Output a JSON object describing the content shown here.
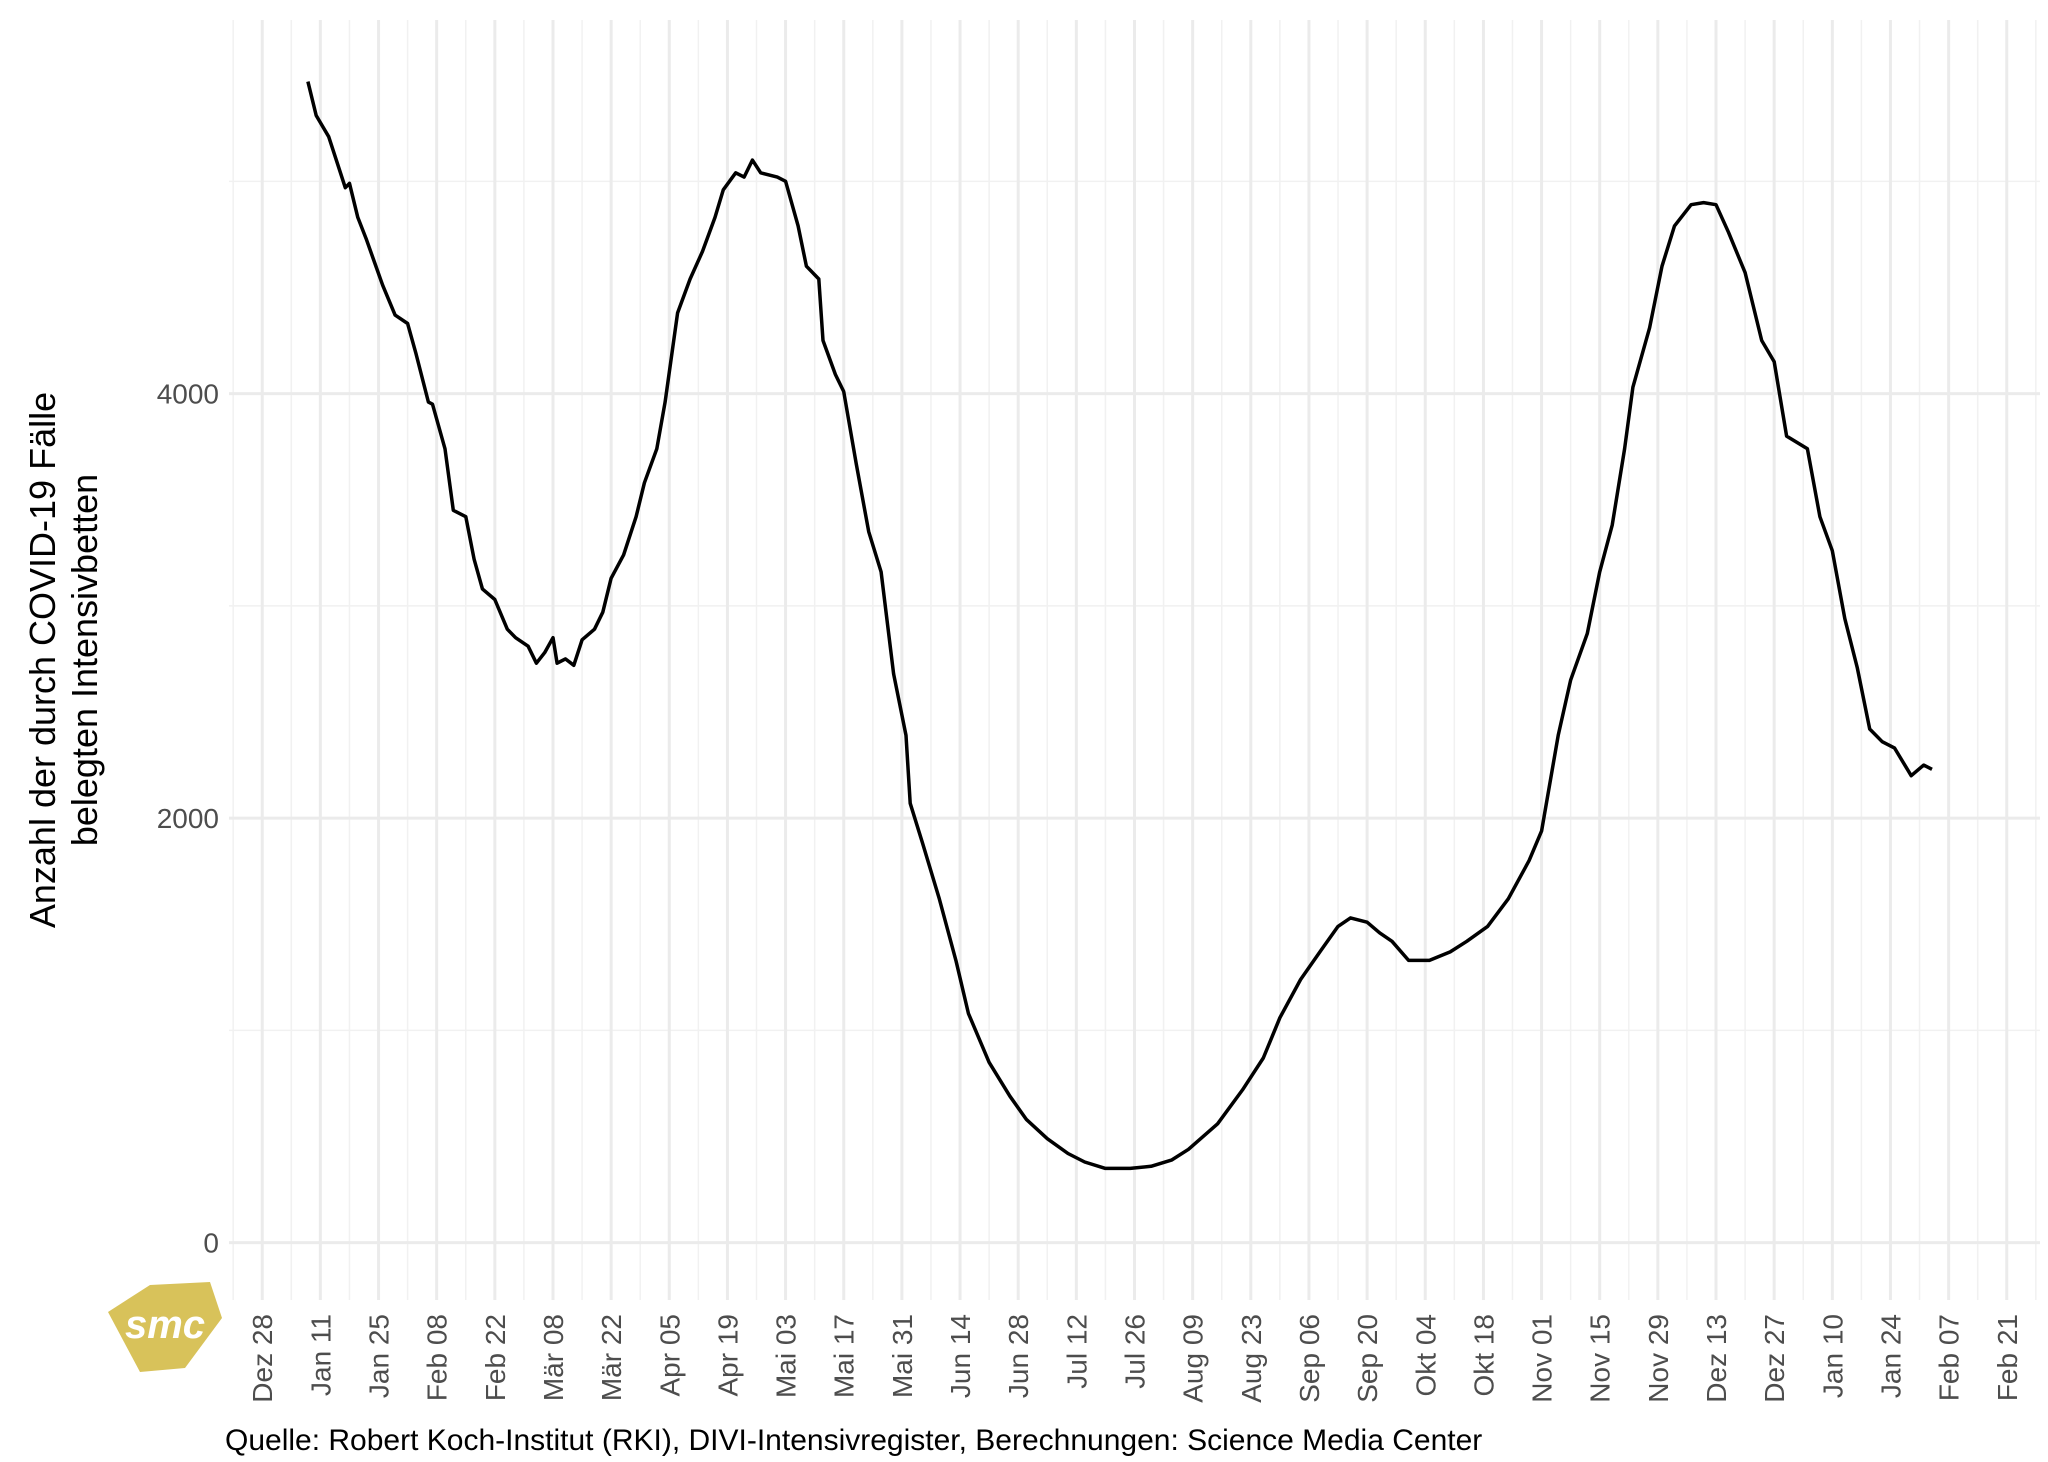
{
  "chart_data": {
    "type": "line",
    "ylabel": [
      "Anzahl der durch COVID-19 Fälle",
      "belegten Intensivbetten"
    ],
    "caption": "Quelle: Robert Koch-Institut (RKI), DIVI-Intensivregister, Berechnungen: Science Media Center",
    "logo_text": "smc",
    "color": "#000000",
    "grid": true,
    "xlim": [
      -8,
      428
    ],
    "ylim": [
      -270,
      5760
    ],
    "yticks": [
      0,
      2000,
      4000
    ],
    "y_minor_ticks": [
      1000,
      3000,
      5000
    ],
    "xticks": [
      {
        "value": 0,
        "label": "Dez 28"
      },
      {
        "value": 14,
        "label": "Jan 11"
      },
      {
        "value": 28,
        "label": "Jan 25"
      },
      {
        "value": 42,
        "label": "Feb 08"
      },
      {
        "value": 56,
        "label": "Feb 22"
      },
      {
        "value": 70,
        "label": "Mär 08"
      },
      {
        "value": 84,
        "label": "Mär 22"
      },
      {
        "value": 98,
        "label": "Apr 05"
      },
      {
        "value": 112,
        "label": "Apr 19"
      },
      {
        "value": 126,
        "label": "Mai 03"
      },
      {
        "value": 140,
        "label": "Mai 17"
      },
      {
        "value": 154,
        "label": "Mai 31"
      },
      {
        "value": 168,
        "label": "Jun 14"
      },
      {
        "value": 182,
        "label": "Jun 28"
      },
      {
        "value": 196,
        "label": "Jul 12"
      },
      {
        "value": 210,
        "label": "Jul 26"
      },
      {
        "value": 224,
        "label": "Aug 09"
      },
      {
        "value": 238,
        "label": "Aug 23"
      },
      {
        "value": 252,
        "label": "Sep 06"
      },
      {
        "value": 266,
        "label": "Sep 20"
      },
      {
        "value": 280,
        "label": "Okt 04"
      },
      {
        "value": 294,
        "label": "Okt 18"
      },
      {
        "value": 308,
        "label": "Nov 01"
      },
      {
        "value": 322,
        "label": "Nov 15"
      },
      {
        "value": 336,
        "label": "Nov 29"
      },
      {
        "value": 350,
        "label": "Dez 13"
      },
      {
        "value": 364,
        "label": "Dez 27"
      },
      {
        "value": 378,
        "label": "Jan 10"
      },
      {
        "value": 392,
        "label": "Jan 24"
      },
      {
        "value": 406,
        "label": "Feb 07"
      },
      {
        "value": 420,
        "label": "Feb 21"
      }
    ],
    "x_minor_ticks": [
      -7,
      7,
      21,
      35,
      49,
      63,
      77,
      91,
      105,
      119,
      133,
      147,
      161,
      175,
      189,
      203,
      217,
      231,
      245,
      259,
      273,
      287,
      301,
      315,
      329,
      343,
      357,
      371,
      385,
      399,
      413,
      427
    ],
    "x": [
      11,
      13,
      16,
      20,
      21,
      23,
      25,
      27,
      29,
      32,
      35,
      37,
      40,
      41,
      44,
      46,
      49,
      51,
      53,
      56,
      59,
      61,
      64,
      66,
      68,
      70,
      71,
      73,
      75,
      77,
      80,
      82,
      84,
      87,
      90,
      92,
      95,
      97,
      100,
      103,
      106,
      109,
      111,
      114,
      116,
      118,
      120,
      124,
      126,
      129,
      131,
      134,
      135,
      138,
      140,
      143,
      146,
      149,
      152,
      155,
      156,
      159,
      163,
      167,
      170,
      175,
      180,
      184,
      189,
      194,
      198,
      203,
      209,
      214,
      219,
      223,
      230,
      236,
      241,
      245,
      250,
      255,
      259,
      262,
      266,
      269,
      272,
      276,
      281,
      286,
      290,
      295,
      300,
      305,
      308,
      312,
      315,
      319,
      322,
      325,
      328,
      330,
      334,
      337,
      340,
      344,
      347,
      350,
      353,
      357,
      361,
      364,
      367,
      372,
      375,
      378,
      381,
      384,
      387,
      390,
      393,
      397,
      400,
      402
    ],
    "values": [
      5470,
      5310,
      5210,
      4970,
      4990,
      4830,
      4730,
      4620,
      4510,
      4370,
      4330,
      4190,
      3960,
      3950,
      3740,
      3450,
      3420,
      3220,
      3080,
      3030,
      2890,
      2850,
      2810,
      2730,
      2780,
      2850,
      2730,
      2750,
      2720,
      2840,
      2890,
      2970,
      3130,
      3240,
      3420,
      3580,
      3740,
      3960,
      4380,
      4540,
      4670,
      4830,
      4960,
      5040,
      5020,
      5100,
      5040,
      5020,
      5000,
      4790,
      4600,
      4540,
      4250,
      4090,
      4010,
      3670,
      3350,
      3160,
      2680,
      2390,
      2070,
      1880,
      1620,
      1330,
      1080,
      850,
      690,
      580,
      490,
      420,
      380,
      350,
      350,
      360,
      390,
      440,
      560,
      720,
      870,
      1060,
      1240,
      1380,
      1490,
      1530,
      1510,
      1460,
      1420,
      1330,
      1330,
      1370,
      1420,
      1490,
      1620,
      1800,
      1940,
      2390,
      2650,
      2870,
      3160,
      3380,
      3740,
      4030,
      4310,
      4600,
      4790,
      4890,
      4900,
      4890,
      4760,
      4570,
      4250,
      4150,
      3800,
      3740,
      3420,
      3260,
      2940,
      2710,
      2420,
      2360,
      2330,
      2200,
      2250,
      2230
    ]
  }
}
